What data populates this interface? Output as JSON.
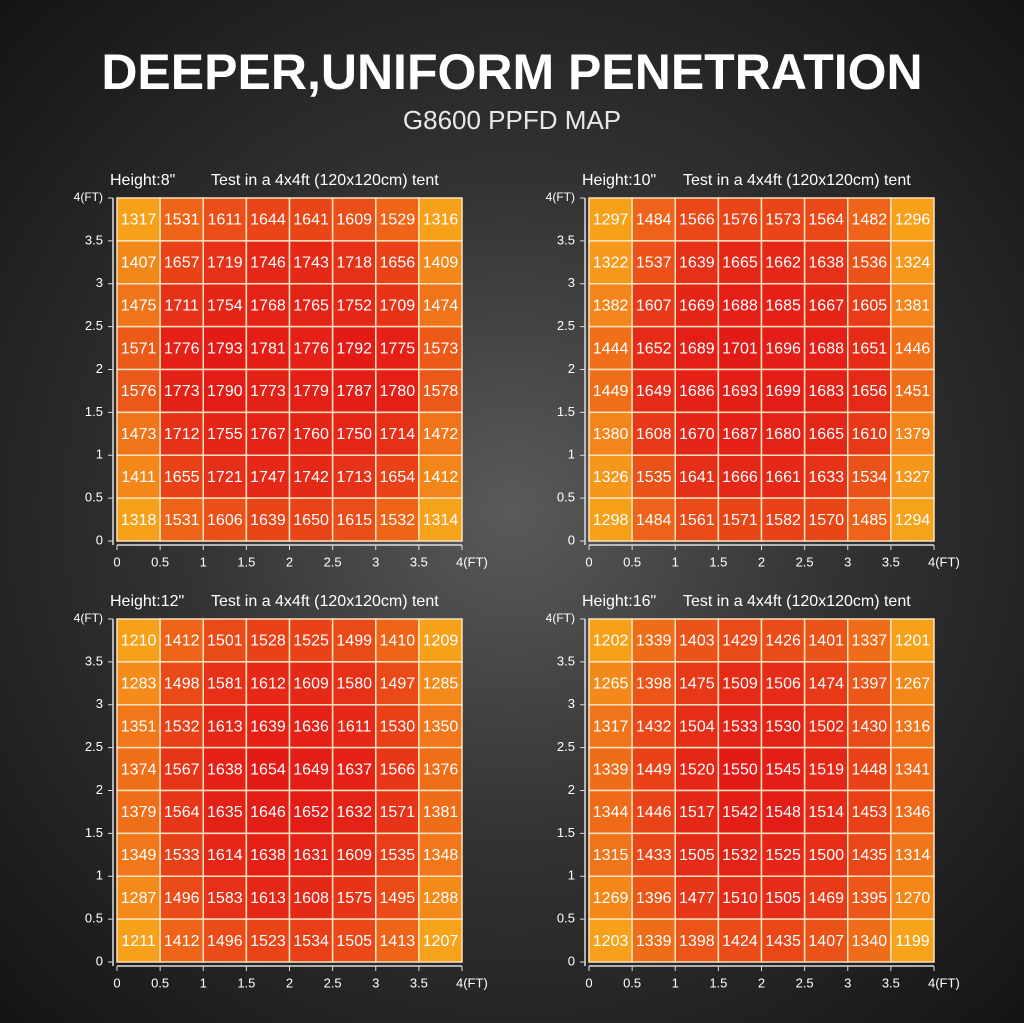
{
  "title": "DEEPER,UNIFORM PENETRATION",
  "subtitle": "G8600 PPFD MAP",
  "chart_data": [
    {
      "type": "heatmap",
      "title": "Height:8\"",
      "subtitle": "Test in a 4x4ft (120x120cm) tent",
      "xlim": [
        0,
        4
      ],
      "ylim": [
        0,
        4
      ],
      "xticks": [
        0,
        0.5,
        1,
        1.5,
        2,
        2.5,
        3,
        3.5,
        {
          "value": 4,
          "label": "4(FT)"
        }
      ],
      "yticks": [
        0,
        0.5,
        1,
        1.5,
        2,
        2.5,
        3,
        3.5,
        {
          "value": 4,
          "label": "4(FT)"
        }
      ],
      "color_low": "#f7a21b",
      "color_high": "#e31b17",
      "values": [
        [
          1317,
          1531,
          1611,
          1644,
          1641,
          1609,
          1529,
          1316
        ],
        [
          1407,
          1657,
          1719,
          1746,
          1743,
          1718,
          1656,
          1409
        ],
        [
          1475,
          1711,
          1754,
          1768,
          1765,
          1752,
          1709,
          1474
        ],
        [
          1571,
          1776,
          1793,
          1781,
          1776,
          1792,
          1775,
          1573
        ],
        [
          1576,
          1773,
          1790,
          1773,
          1779,
          1787,
          1780,
          1578
        ],
        [
          1473,
          1712,
          1755,
          1767,
          1760,
          1750,
          1714,
          1472
        ],
        [
          1411,
          1655,
          1721,
          1747,
          1742,
          1713,
          1654,
          1412
        ],
        [
          1318,
          1531,
          1606,
          1639,
          1650,
          1615,
          1532,
          1314
        ]
      ]
    },
    {
      "type": "heatmap",
      "title": "Height:10\"",
      "subtitle": "Test in a 4x4ft (120x120cm) tent",
      "xlim": [
        0,
        4
      ],
      "ylim": [
        0,
        4
      ],
      "xticks": [
        0,
        0.5,
        1,
        1.5,
        2,
        2.5,
        3,
        3.5,
        {
          "value": 4,
          "label": "4(FT)"
        }
      ],
      "yticks": [
        0,
        0.5,
        1,
        1.5,
        2,
        2.5,
        3,
        3.5,
        {
          "value": 4,
          "label": "4(FT)"
        }
      ],
      "color_low": "#f7a21b",
      "color_high": "#e31b17",
      "values": [
        [
          1297,
          1484,
          1566,
          1576,
          1573,
          1564,
          1482,
          1296
        ],
        [
          1322,
          1537,
          1639,
          1665,
          1662,
          1638,
          1536,
          1324
        ],
        [
          1382,
          1607,
          1669,
          1688,
          1685,
          1667,
          1605,
          1381
        ],
        [
          1444,
          1652,
          1689,
          1701,
          1696,
          1688,
          1651,
          1446
        ],
        [
          1449,
          1649,
          1686,
          1693,
          1699,
          1683,
          1656,
          1451
        ],
        [
          1380,
          1608,
          1670,
          1687,
          1680,
          1665,
          1610,
          1379
        ],
        [
          1326,
          1535,
          1641,
          1666,
          1661,
          1633,
          1534,
          1327
        ],
        [
          1298,
          1484,
          1561,
          1571,
          1582,
          1570,
          1485,
          1294
        ]
      ]
    },
    {
      "type": "heatmap",
      "title": "Height:12\"",
      "subtitle": "Test in a 4x4ft (120x120cm) tent",
      "xlim": [
        0,
        4
      ],
      "ylim": [
        0,
        4
      ],
      "xticks": [
        0,
        0.5,
        1,
        1.5,
        2,
        2.5,
        3,
        3.5,
        {
          "value": 4,
          "label": "4(FT)"
        }
      ],
      "yticks": [
        0,
        0.5,
        1,
        1.5,
        2,
        2.5,
        3,
        3.5,
        {
          "value": 4,
          "label": "4(FT)"
        }
      ],
      "color_low": "#f7a21b",
      "color_high": "#e31b17",
      "values": [
        [
          1210,
          1412,
          1501,
          1528,
          1525,
          1499,
          1410,
          1209
        ],
        [
          1283,
          1498,
          1581,
          1612,
          1609,
          1580,
          1497,
          1285
        ],
        [
          1351,
          1532,
          1613,
          1639,
          1636,
          1611,
          1530,
          1350
        ],
        [
          1374,
          1567,
          1638,
          1654,
          1649,
          1637,
          1566,
          1376
        ],
        [
          1379,
          1564,
          1635,
          1646,
          1652,
          1632,
          1571,
          1381
        ],
        [
          1349,
          1533,
          1614,
          1638,
          1631,
          1609,
          1535,
          1348
        ],
        [
          1287,
          1496,
          1583,
          1613,
          1608,
          1575,
          1495,
          1288
        ],
        [
          1211,
          1412,
          1496,
          1523,
          1534,
          1505,
          1413,
          1207
        ]
      ]
    },
    {
      "type": "heatmap",
      "title": "Height:16\"",
      "subtitle": "Test in a 4x4ft (120x120cm) tent",
      "xlim": [
        0,
        4
      ],
      "ylim": [
        0,
        4
      ],
      "xticks": [
        0,
        0.5,
        1,
        1.5,
        2,
        2.5,
        3,
        3.5,
        {
          "value": 4,
          "label": "4(FT)"
        }
      ],
      "yticks": [
        0,
        0.5,
        1,
        1.5,
        2,
        2.5,
        3,
        3.5,
        {
          "value": 4,
          "label": "4(FT)"
        }
      ],
      "color_low": "#f7a21b",
      "color_high": "#e31b17",
      "values": [
        [
          1202,
          1339,
          1403,
          1429,
          1426,
          1401,
          1337,
          1201
        ],
        [
          1265,
          1398,
          1475,
          1509,
          1506,
          1474,
          1397,
          1267
        ],
        [
          1317,
          1432,
          1504,
          1533,
          1530,
          1502,
          1430,
          1316
        ],
        [
          1339,
          1449,
          1520,
          1550,
          1545,
          1519,
          1448,
          1341
        ],
        [
          1344,
          1446,
          1517,
          1542,
          1548,
          1514,
          1453,
          1346
        ],
        [
          1315,
          1433,
          1505,
          1532,
          1525,
          1500,
          1435,
          1314
        ],
        [
          1269,
          1396,
          1477,
          1510,
          1505,
          1469,
          1395,
          1270
        ],
        [
          1203,
          1339,
          1398,
          1424,
          1435,
          1407,
          1340,
          1199
        ]
      ]
    }
  ]
}
